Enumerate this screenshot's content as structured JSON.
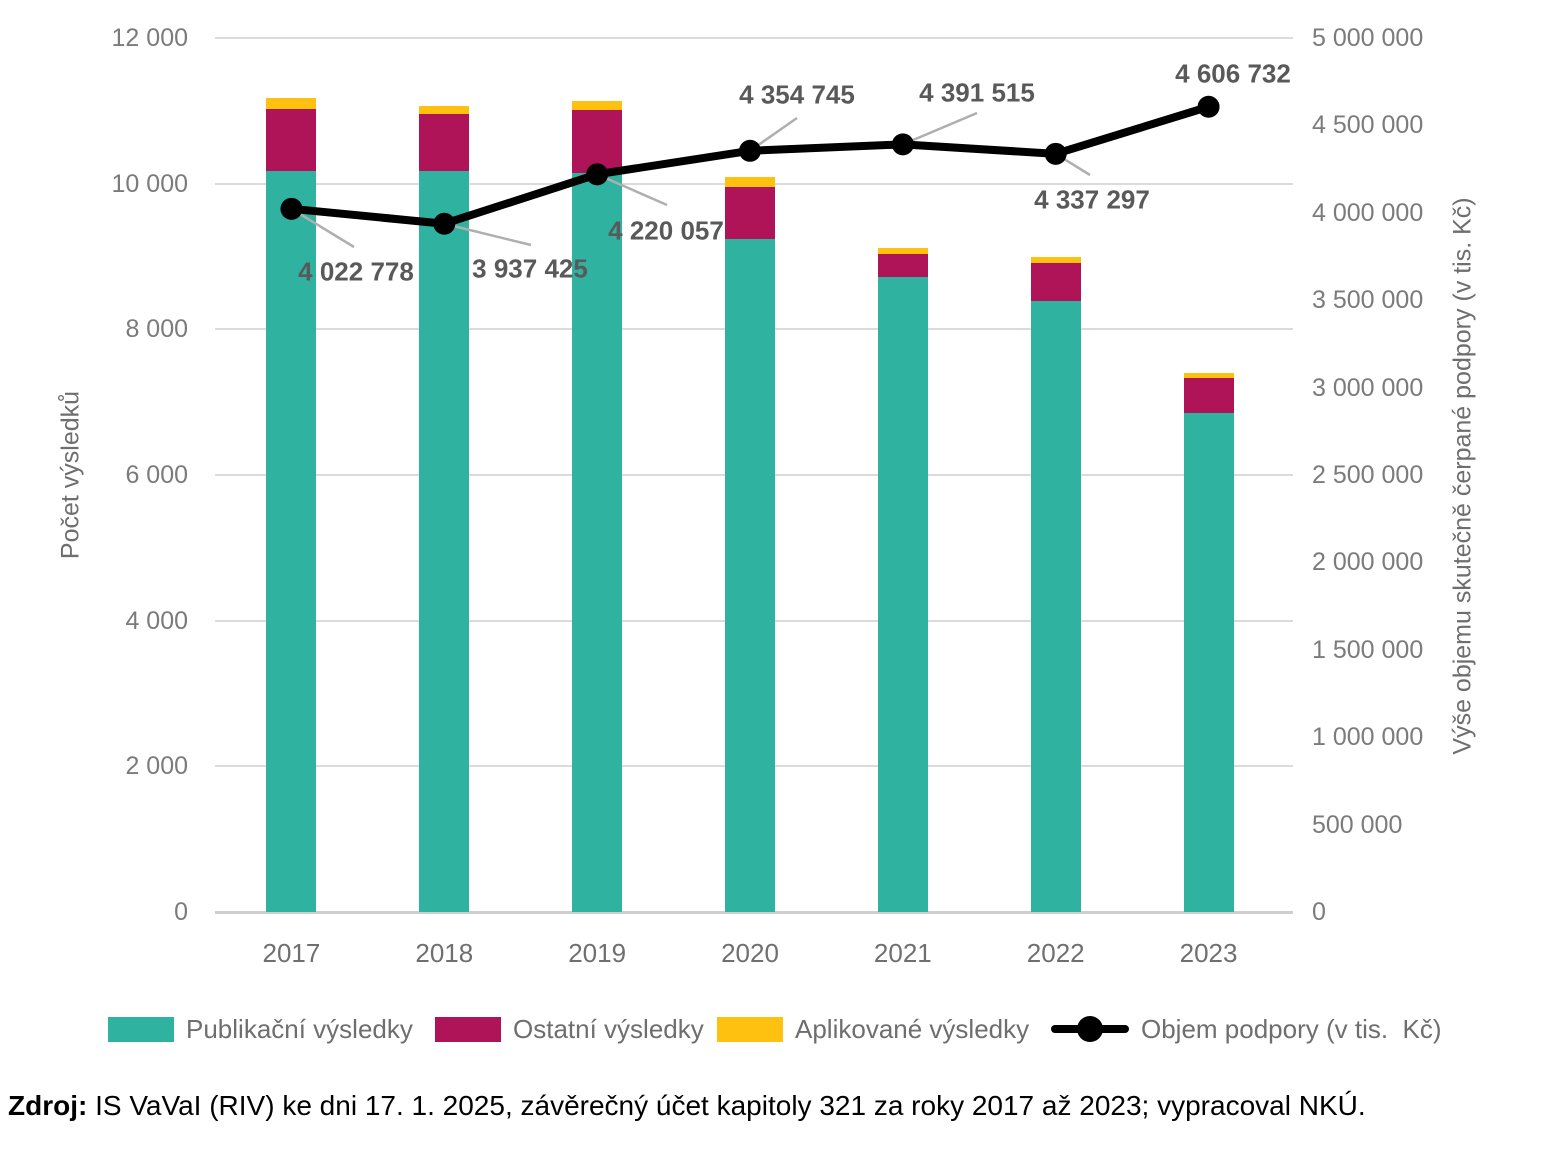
{
  "chart_data": {
    "type": "combo-stacked-bar-line",
    "categories": [
      "2017",
      "2018",
      "2019",
      "2020",
      "2021",
      "2022",
      "2023"
    ],
    "bar_series": [
      {
        "name": "Publikační výsledky",
        "color": "#30B2A1",
        "values": [
          10170,
          10170,
          10140,
          9240,
          8720,
          8390,
          6850
        ]
      },
      {
        "name": "Ostatní výsledky",
        "color": "#AE1457",
        "values": [
          860,
          790,
          870,
          720,
          320,
          520,
          480
        ]
      },
      {
        "name": "Aplikované výsledky",
        "color": "#FEC110",
        "values": [
          140,
          110,
          130,
          130,
          80,
          90,
          75
        ]
      }
    ],
    "line_series": {
      "name": "Objem podpory (v tis.  Kč)",
      "color": "#000000",
      "values": [
        4022778,
        3937425,
        4220057,
        4354745,
        4391515,
        4337297,
        4606732
      ],
      "point_labels": [
        "4 022 778",
        "3 937 425",
        "4 220 057",
        "4 354 745",
        "4 391 515",
        "4 337 297",
        "4 606 732"
      ]
    },
    "y_left": {
      "title": "Počet výsledků",
      "min": 0,
      "max": 12000,
      "tick_values": [
        0,
        2000,
        4000,
        6000,
        8000,
        10000,
        12000
      ],
      "tick_labels": [
        "0",
        "2 000",
        "4 000",
        "6 000",
        "8 000",
        "10 000",
        "12 000"
      ]
    },
    "y_right": {
      "title": "Výše objemu skutečně čerpané podpory (v tis. Kč)",
      "min": 0,
      "max": 5000000,
      "tick_values": [
        0,
        500000,
        1000000,
        1500000,
        2000000,
        2500000,
        3000000,
        3500000,
        4000000,
        4500000,
        5000000
      ],
      "tick_labels": [
        "0",
        "500 000",
        "1 000 000",
        "1 500 000",
        "2 000 000",
        "2 500 000",
        "3 000 000",
        "3 500 000",
        "4 000 000",
        "4 500 000",
        "5 000 000"
      ]
    },
    "grid": true,
    "legend_position": "bottom"
  },
  "source_note": {
    "prefix": "Zdroj:",
    "rest": " IS VaVaI (RIV) ke dni 17. 1. 2025, závěrečný účet kapitoly 321 za roky 2017 až 2023; vypracoval NKÚ."
  }
}
